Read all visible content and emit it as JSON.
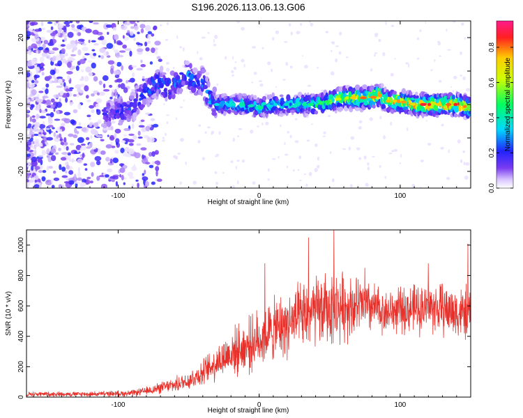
{
  "title": "S196.2026.113.06.13.G06",
  "chart_data": [
    {
      "type": "heatmap",
      "xlabel": "Height of straight line (km)",
      "ylabel": "Frequency (Hz)",
      "xlim": [
        -165,
        150
      ],
      "ylim": [
        -25,
        25
      ],
      "xticks": [
        -100,
        0,
        100
      ],
      "yticks": [
        -20,
        -10,
        0,
        10,
        20
      ],
      "colorbar": {
        "label": "Normalized spectral amplitude",
        "range": [
          0,
          0.95
        ],
        "ticks": [
          0.0,
          0.2,
          0.4,
          0.6,
          0.8
        ]
      },
      "ridge_frequency_track": {
        "x": [
          -110,
          -100,
          -90,
          -82,
          -75,
          -70,
          -65,
          -60,
          -55,
          -50,
          -45,
          -40,
          -35,
          -30,
          -20,
          -10,
          0,
          10,
          20,
          30,
          40,
          50,
          60,
          70,
          80,
          85,
          90,
          100,
          110,
          120,
          130,
          140,
          150
        ],
        "y": [
          -3,
          -2,
          -1,
          3,
          6,
          7,
          5,
          6,
          8,
          9,
          6,
          7,
          2,
          0,
          0,
          0,
          -1,
          0,
          0,
          0,
          0,
          1,
          2,
          2,
          2,
          3,
          1,
          1,
          0,
          0,
          0,
          0,
          -1
        ]
      },
      "peak_amplitude_track": {
        "x": [
          -110,
          -90,
          -75,
          -60,
          -45,
          -30,
          -10,
          10,
          30,
          50,
          60,
          70,
          80,
          90,
          100,
          110,
          120,
          130,
          140,
          150
        ],
        "amplitude": [
          0.2,
          0.25,
          0.3,
          0.28,
          0.3,
          0.35,
          0.45,
          0.4,
          0.45,
          0.55,
          0.7,
          0.8,
          0.85,
          0.75,
          0.85,
          0.8,
          0.9,
          0.85,
          0.9,
          0.85
        ]
      }
    },
    {
      "type": "line",
      "xlabel": "Height of straight line (km)",
      "ylabel": "SNR (10 * v/v)",
      "xlim": [
        -165,
        150
      ],
      "ylim": [
        0,
        1100
      ],
      "xticks": [
        -100,
        0,
        100
      ],
      "yticks": [
        0,
        200,
        400,
        600,
        800,
        1000
      ],
      "color": "#e8302a",
      "envelope": {
        "x": [
          -165,
          -120,
          -90,
          -80,
          -70,
          -60,
          -50,
          -40,
          -30,
          -20,
          -10,
          0,
          10,
          20,
          30,
          40,
          50,
          60,
          70,
          80,
          90,
          100,
          110,
          120,
          130,
          140,
          150
        ],
        "mean": [
          20,
          20,
          25,
          40,
          60,
          80,
          110,
          160,
          230,
          290,
          330,
          380,
          440,
          480,
          520,
          560,
          580,
          600,
          600,
          590,
          560,
          570,
          580,
          590,
          580,
          560,
          540
        ],
        "spread": [
          15,
          15,
          20,
          25,
          35,
          45,
          60,
          80,
          110,
          140,
          160,
          180,
          190,
          200,
          210,
          220,
          220,
          210,
          180,
          160,
          130,
          140,
          150,
          160,
          160,
          160,
          170
        ]
      },
      "notable_peaks": [
        {
          "x": -70,
          "y": 85
        },
        {
          "x": -30,
          "y": 300
        },
        {
          "x": 4,
          "y": 880
        },
        {
          "x": 35,
          "y": 1050
        },
        {
          "x": 53,
          "y": 1100
        },
        {
          "x": 75,
          "y": 850
        },
        {
          "x": 120,
          "y": 880
        },
        {
          "x": 148,
          "y": 1010
        }
      ]
    }
  ]
}
